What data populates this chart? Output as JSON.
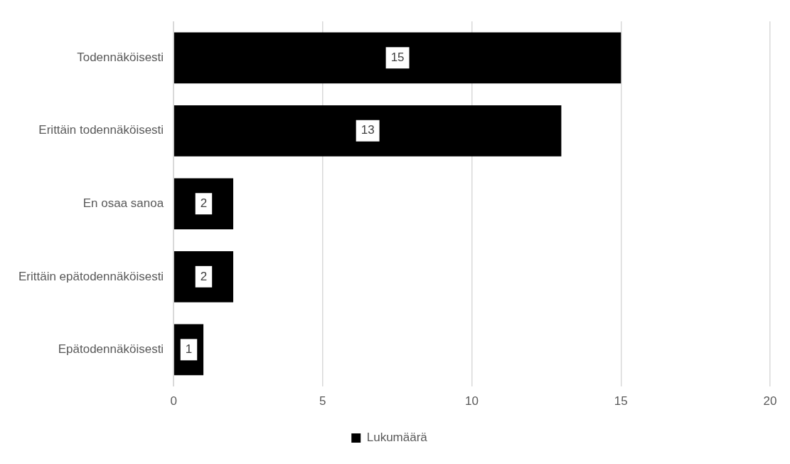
{
  "chart_data": {
    "type": "bar",
    "orientation": "horizontal",
    "categories": [
      "Todennäköisesti",
      "Erittäin todennäköisesti",
      "En osaa sanoa",
      "Erittäin epätodennäköisesti",
      "Epätodennäköisesti"
    ],
    "series": [
      {
        "name": "Lukumäärä",
        "color": "#000000",
        "values": [
          15,
          13,
          2,
          2,
          1
        ]
      }
    ],
    "xlim": [
      0,
      20
    ],
    "xticks": [
      0,
      5,
      10,
      15,
      20
    ],
    "grid": "x",
    "legend": "bottom",
    "data_labels": true
  }
}
